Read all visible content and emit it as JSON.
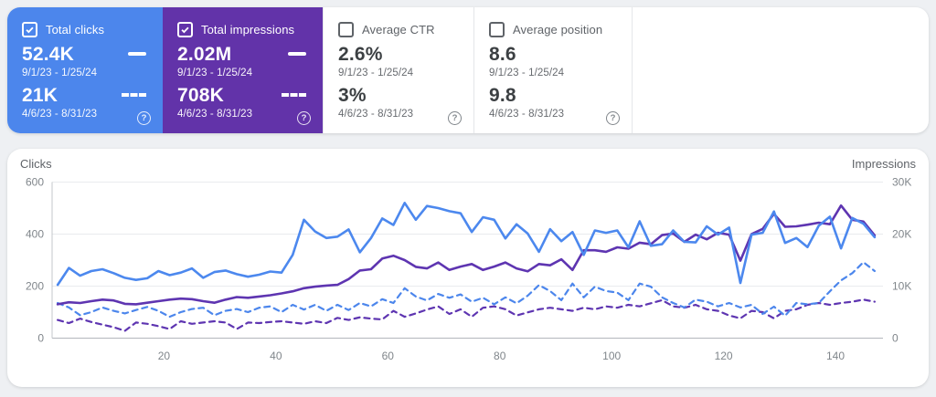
{
  "icons": {
    "help": "?",
    "check": "checkmark"
  },
  "cards": [
    {
      "label": "Total clicks",
      "checked": true,
      "accent": "#4c86ec",
      "current_value": "52.4K",
      "current_range": "9/1/23 - 1/25/24",
      "previous_value": "21K",
      "previous_range": "4/6/23 - 8/31/23"
    },
    {
      "label": "Total impressions",
      "checked": true,
      "accent": "#6233a9",
      "current_value": "2.02M",
      "current_range": "9/1/23 - 1/25/24",
      "previous_value": "708K",
      "previous_range": "4/6/23 - 8/31/23"
    },
    {
      "label": "Average CTR",
      "checked": false,
      "accent": "",
      "current_value": "2.6%",
      "current_range": "9/1/23 - 1/25/24",
      "previous_value": "3%",
      "previous_range": "4/6/23 - 8/31/23"
    },
    {
      "label": "Average position",
      "checked": false,
      "accent": "",
      "current_value": "8.6",
      "current_range": "9/1/23 - 1/25/24",
      "previous_value": "9.8",
      "previous_range": "4/6/23 - 8/31/23"
    }
  ],
  "chart_data": {
    "type": "line",
    "x_start": 1,
    "x_step": 2,
    "x_max": 148,
    "x_label_ticks": [
      20,
      40,
      60,
      80,
      100,
      120,
      140
    ],
    "grid": true,
    "left_axis": {
      "title": "Clicks",
      "max": 600,
      "ticks": [
        0,
        200,
        400,
        600
      ]
    },
    "right_axis": {
      "title": "Impressions",
      "max": 30000,
      "ticks": [
        "0",
        "10K",
        "20K",
        "30K"
      ],
      "tick_values": [
        0,
        10000,
        20000,
        30000
      ]
    },
    "series": [
      {
        "name": "Total impressions (4/6/23 - 8/31/23)",
        "axis": "right",
        "style": "dashed",
        "color": "#5e35b1",
        "values": [
          3500,
          2900,
          3750,
          3100,
          2600,
          2100,
          1400,
          3000,
          2750,
          2300,
          1750,
          3250,
          2750,
          3000,
          3250,
          3000,
          1750,
          3000,
          2900,
          3100,
          3250,
          3000,
          2750,
          3250,
          2900,
          3900,
          3500,
          4000,
          3750,
          3600,
          5250,
          4100,
          4750,
          5500,
          6100,
          4650,
          5550,
          4100,
          5850,
          6100,
          5550,
          4350,
          4950,
          5550,
          5850,
          5550,
          5250,
          5850,
          5550,
          6100,
          5850,
          6400,
          6100,
          6700,
          7300,
          6100,
          5850,
          6400,
          5550,
          5250,
          4350,
          3800,
          5250,
          5000,
          3800,
          5250,
          5550,
          6400,
          6750,
          6400,
          6750,
          7000,
          7400,
          7000
        ]
      },
      {
        "name": "Total clicks (4/6/23 - 8/31/23)",
        "axis": "left",
        "style": "dashed",
        "color": "#4c86ec",
        "values": [
          135,
          118,
          88,
          100,
          118,
          105,
          95,
          108,
          120,
          105,
          82,
          100,
          112,
          117,
          88,
          105,
          112,
          100,
          117,
          122,
          100,
          128,
          110,
          128,
          105,
          128,
          108,
          135,
          122,
          150,
          135,
          192,
          160,
          145,
          170,
          155,
          168,
          140,
          155,
          130,
          157,
          134,
          163,
          204,
          181,
          146,
          210,
          157,
          198,
          181,
          175,
          146,
          210,
          198,
          157,
          135,
          118,
          148,
          140,
          122,
          135,
          118,
          128,
          93,
          121,
          86,
          135,
          130,
          135,
          180,
          222,
          250,
          292,
          258
        ]
      },
      {
        "name": "Total impressions (9/1/23 - 1/25/24)",
        "axis": "right",
        "style": "solid",
        "color": "#5e35b1",
        "values": [
          6500,
          6900,
          6750,
          7100,
          7400,
          7250,
          6600,
          6500,
          6800,
          7100,
          7400,
          7600,
          7500,
          7100,
          6800,
          7400,
          7900,
          7750,
          8000,
          8250,
          8600,
          9000,
          9600,
          9900,
          10100,
          10250,
          11350,
          13000,
          13250,
          15300,
          15850,
          15000,
          13700,
          13400,
          14550,
          13100,
          13750,
          14250,
          13100,
          13750,
          14550,
          13400,
          12850,
          14250,
          14000,
          15150,
          13100,
          16900,
          16900,
          16600,
          17450,
          17200,
          18350,
          18050,
          19800,
          20100,
          18500,
          19900,
          19000,
          20250,
          19900,
          14900,
          20000,
          21000,
          23900,
          21400,
          21500,
          21800,
          22200,
          21900,
          25500,
          22750,
          22400,
          19750
        ]
      },
      {
        "name": "Total clicks (9/1/23 - 1/25/24)",
        "axis": "left",
        "style": "solid",
        "color": "#4c88ee",
        "values": [
          205,
          270,
          240,
          258,
          265,
          250,
          232,
          224,
          230,
          258,
          242,
          252,
          268,
          232,
          254,
          260,
          246,
          236,
          244,
          256,
          252,
          320,
          455,
          410,
          385,
          390,
          418,
          330,
          385,
          460,
          435,
          520,
          455,
          508,
          500,
          488,
          480,
          408,
          465,
          455,
          383,
          438,
          402,
          332,
          419,
          373,
          408,
          320,
          414,
          405,
          414,
          349,
          449,
          355,
          361,
          414,
          370,
          368,
          430,
          398,
          425,
          212,
          398,
          405,
          487,
          366,
          385,
          350,
          432,
          467,
          345,
          462,
          440,
          388
        ]
      }
    ]
  }
}
